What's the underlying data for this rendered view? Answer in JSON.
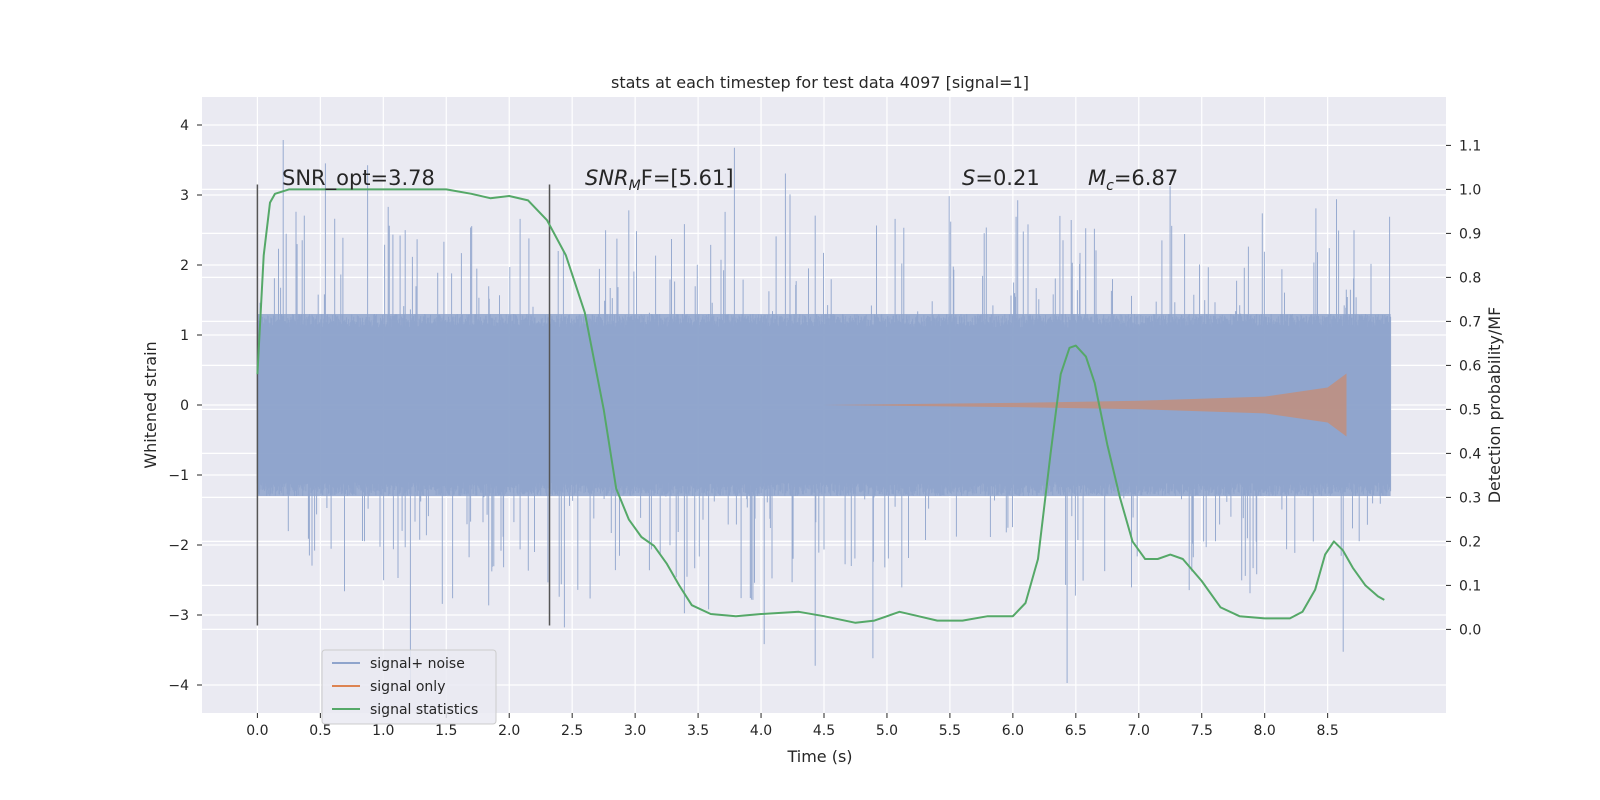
{
  "chart_data": {
    "type": "line",
    "title": "stats at each timestep for test data 4097 [signal=1]",
    "xlabel": "Time (s)",
    "ylabel": "Whitened strain",
    "y2label": "Detection probability/MF",
    "xlim": [
      -0.44,
      9.44
    ],
    "ylim": [
      -4.4,
      4.4
    ],
    "y2lim": [
      -0.19,
      1.21
    ],
    "xticks": [
      "0.0",
      "0.5",
      "1.0",
      "1.5",
      "2.0",
      "2.5",
      "3.0",
      "3.5",
      "4.0",
      "4.5",
      "5.0",
      "5.5",
      "6.0",
      "6.5",
      "7.0",
      "7.5",
      "8.0",
      "8.5"
    ],
    "yticks": [
      "4",
      "3",
      "2",
      "1",
      "0",
      "−1",
      "−2",
      "−3",
      "−4"
    ],
    "y2ticks": [
      "1.1",
      "1.0",
      "0.9",
      "0.8",
      "0.7",
      "0.6",
      "0.5",
      "0.4",
      "0.3",
      "0.2",
      "0.1",
      "0.0"
    ],
    "grid": true,
    "legend_position": "lower-left",
    "colors": {
      "background": "#eaeaf2",
      "noise": "#8fa4cc",
      "signal": "#dd8452",
      "statistics": "#55a868",
      "marker": "#555555"
    },
    "series": [
      {
        "name": "signal+ noise",
        "x_range": [
          0.0,
          9.0
        ],
        "typical_extent": [
          -1.3,
          1.3
        ],
        "peak_extent": [
          -4.0,
          4.0
        ]
      },
      {
        "name": "signal only",
        "x_range": [
          4.5,
          8.65
        ],
        "envelope": [
          [
            4.5,
            0.0
          ],
          [
            6.0,
            0.03
          ],
          [
            7.0,
            0.06
          ],
          [
            8.0,
            0.12
          ],
          [
            8.5,
            0.25
          ],
          [
            8.65,
            0.45
          ]
        ]
      },
      {
        "name": "signal statistics",
        "axis": "right",
        "points": [
          [
            0.0,
            0.58
          ],
          [
            0.05,
            0.85
          ],
          [
            0.1,
            0.97
          ],
          [
            0.14,
            0.99
          ],
          [
            0.25,
            1.0
          ],
          [
            0.5,
            1.0
          ],
          [
            1.0,
            1.0
          ],
          [
            1.5,
            1.0
          ],
          [
            1.7,
            0.99
          ],
          [
            1.85,
            0.98
          ],
          [
            2.0,
            0.985
          ],
          [
            2.15,
            0.975
          ],
          [
            2.3,
            0.93
          ],
          [
            2.45,
            0.85
          ],
          [
            2.6,
            0.72
          ],
          [
            2.75,
            0.5
          ],
          [
            2.85,
            0.32
          ],
          [
            2.95,
            0.25
          ],
          [
            3.05,
            0.21
          ],
          [
            3.15,
            0.19
          ],
          [
            3.25,
            0.15
          ],
          [
            3.35,
            0.1
          ],
          [
            3.45,
            0.055
          ],
          [
            3.6,
            0.035
          ],
          [
            3.8,
            0.03
          ],
          [
            4.0,
            0.035
          ],
          [
            4.3,
            0.04
          ],
          [
            4.5,
            0.03
          ],
          [
            4.75,
            0.015
          ],
          [
            4.9,
            0.02
          ],
          [
            5.1,
            0.04
          ],
          [
            5.25,
            0.03
          ],
          [
            5.4,
            0.02
          ],
          [
            5.6,
            0.02
          ],
          [
            5.8,
            0.03
          ],
          [
            6.0,
            0.03
          ],
          [
            6.1,
            0.06
          ],
          [
            6.2,
            0.16
          ],
          [
            6.3,
            0.4
          ],
          [
            6.38,
            0.58
          ],
          [
            6.45,
            0.64
          ],
          [
            6.5,
            0.645
          ],
          [
            6.58,
            0.62
          ],
          [
            6.65,
            0.56
          ],
          [
            6.75,
            0.42
          ],
          [
            6.85,
            0.3
          ],
          [
            6.95,
            0.2
          ],
          [
            7.05,
            0.16
          ],
          [
            7.15,
            0.16
          ],
          [
            7.25,
            0.17
          ],
          [
            7.35,
            0.16
          ],
          [
            7.5,
            0.11
          ],
          [
            7.65,
            0.05
          ],
          [
            7.8,
            0.03
          ],
          [
            8.0,
            0.025
          ],
          [
            8.2,
            0.025
          ],
          [
            8.3,
            0.04
          ],
          [
            8.4,
            0.09
          ],
          [
            8.48,
            0.17
          ],
          [
            8.55,
            0.2
          ],
          [
            8.62,
            0.18
          ],
          [
            8.7,
            0.14
          ],
          [
            8.8,
            0.1
          ],
          [
            8.9,
            0.075
          ],
          [
            8.95,
            0.067
          ]
        ]
      }
    ],
    "markers": [
      0.0,
      2.32
    ],
    "annotations": [
      {
        "text": "SNR_opt=3.78"
      },
      {
        "main": "SNR",
        "sub": "M",
        "rest": "F=[5.61]"
      },
      {
        "main": "S",
        "rest": "=0.21"
      },
      {
        "main": "M",
        "sub": "c",
        "rest": "=6.87"
      }
    ]
  }
}
